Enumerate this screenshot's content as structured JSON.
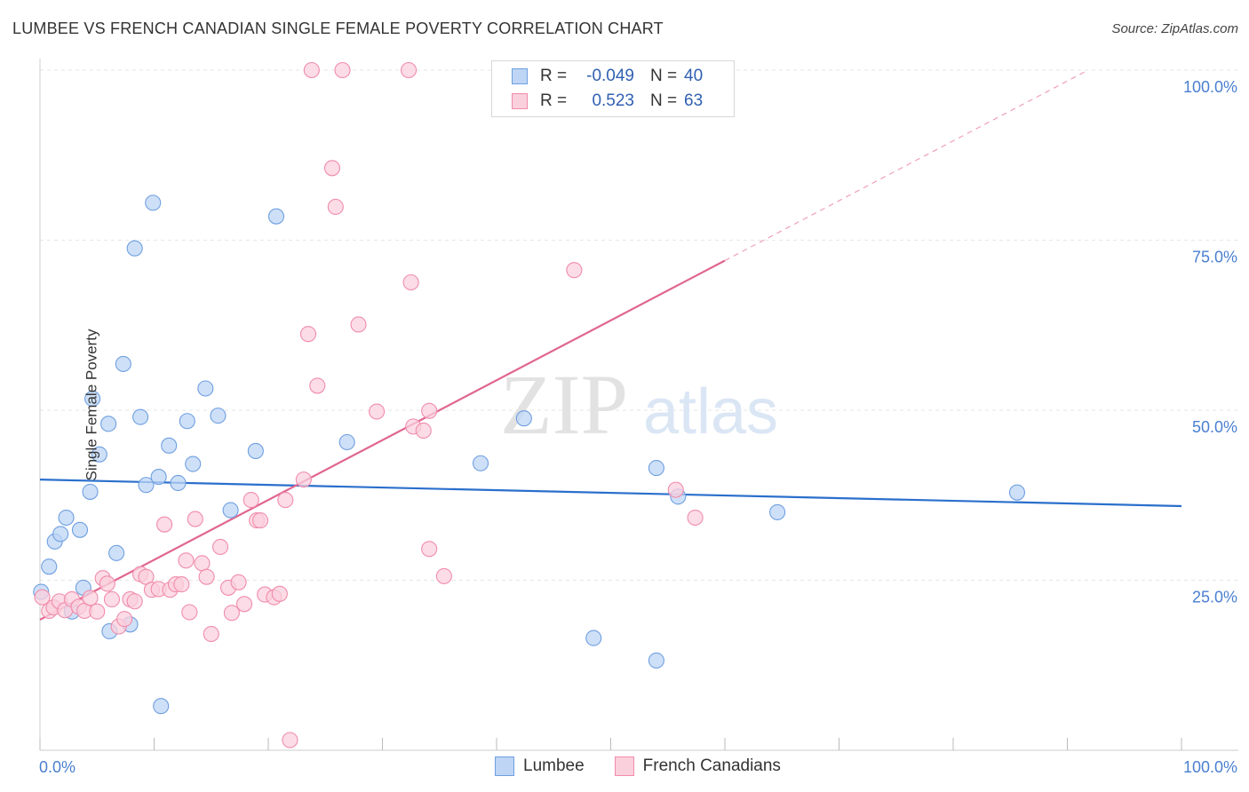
{
  "title": "LUMBEE VS FRENCH CANADIAN SINGLE FEMALE POVERTY CORRELATION CHART",
  "source": "Source: ZipAtlas.com",
  "watermark": {
    "zip": "ZIP",
    "atlas": "atlas"
  },
  "legend": {
    "rows": [
      {
        "r_label": "R =",
        "r_value": "-0.049",
        "n_label": "N =",
        "n_value": "40",
        "color": "#6f9fe0"
      },
      {
        "r_label": "R =",
        "r_value": "0.523",
        "n_label": "N =",
        "n_value": "63",
        "color": "#f08cab"
      }
    ]
  },
  "bottom_legend": [
    {
      "label": "Lumbee",
      "fill": "#bed5f5",
      "stroke": "#6f9fe0"
    },
    {
      "label": "French Canadians",
      "fill": "#fbd0dd",
      "stroke": "#f08cab"
    }
  ],
  "chart_data": {
    "type": "scatter",
    "title": "LUMBEE VS FRENCH CANADIAN SINGLE FEMALE POVERTY CORRELATION CHART",
    "xlabel": "",
    "ylabel": "Single Female Poverty",
    "xlim": [
      0,
      100
    ],
    "ylim": [
      0,
      100
    ],
    "x_tick_labels": [
      "0.0%",
      "100.0%"
    ],
    "y_tick_labels": [
      {
        "value": 100,
        "label": "100.0%"
      },
      {
        "value": 75,
        "label": "75.0%"
      },
      {
        "value": 50,
        "label": "50.0%"
      },
      {
        "value": 25,
        "label": "25.0%"
      }
    ],
    "series": [
      {
        "name": "Lumbee",
        "color": "#6f9fe0",
        "fill": "#bed5f5",
        "trend": {
          "x0": 0,
          "y0": 39.8,
          "x1": 100,
          "y1": 35.9
        },
        "points": [
          [
            0.1,
            23.3
          ],
          [
            0.8,
            27
          ],
          [
            1.3,
            30.7
          ],
          [
            1.8,
            31.8
          ],
          [
            2.3,
            34.2
          ],
          [
            2.8,
            20.4
          ],
          [
            3.5,
            32.4
          ],
          [
            3.8,
            23.9
          ],
          [
            4.4,
            38
          ],
          [
            4.6,
            51.7
          ],
          [
            5.2,
            43.5
          ],
          [
            6.0,
            48
          ],
          [
            6.1,
            17.5
          ],
          [
            6.7,
            29
          ],
          [
            7.3,
            56.8
          ],
          [
            7.9,
            18.5
          ],
          [
            8.3,
            73.8
          ],
          [
            8.8,
            49
          ],
          [
            9.3,
            39
          ],
          [
            9.9,
            80.5
          ],
          [
            10.4,
            40.2
          ],
          [
            10.6,
            6.5
          ],
          [
            11.3,
            44.8
          ],
          [
            12.1,
            39.3
          ],
          [
            12.9,
            48.4
          ],
          [
            13.4,
            42.1
          ],
          [
            14.5,
            53.2
          ],
          [
            15.6,
            49.2
          ],
          [
            16.7,
            35.3
          ],
          [
            18.9,
            44
          ],
          [
            20.7,
            78.5
          ],
          [
            26.9,
            45.3
          ],
          [
            38.6,
            42.2
          ],
          [
            42.4,
            48.8
          ],
          [
            48.5,
            16.5
          ],
          [
            54.0,
            41.5
          ],
          [
            55.9,
            37.3
          ],
          [
            54.0,
            13.2
          ],
          [
            64.6,
            35
          ],
          [
            85.6,
            37.9
          ]
        ]
      },
      {
        "name": "French Canadians",
        "color": "#f08cab",
        "fill": "#fbd0dd",
        "trend": {
          "x0": 0,
          "y0": 19.2,
          "x1": 60,
          "y1": 72.0
        },
        "trend_extension": {
          "x0": 60,
          "y0": 72.0,
          "x1": 100,
          "y1": 107.2
        },
        "points": [
          [
            0.2,
            22.5
          ],
          [
            0.8,
            20.5
          ],
          [
            1.2,
            21
          ],
          [
            1.7,
            21.9
          ],
          [
            2.2,
            20.6
          ],
          [
            2.8,
            22.2
          ],
          [
            3.4,
            21.1
          ],
          [
            3.9,
            20.5
          ],
          [
            4.4,
            22.4
          ],
          [
            5.0,
            20.4
          ],
          [
            5.5,
            25.3
          ],
          [
            5.9,
            24.5
          ],
          [
            6.3,
            22.2
          ],
          [
            6.9,
            18.2
          ],
          [
            7.4,
            19.3
          ],
          [
            7.9,
            22.2
          ],
          [
            8.3,
            21.9
          ],
          [
            8.8,
            25.9
          ],
          [
            9.3,
            25.5
          ],
          [
            9.8,
            23.6
          ],
          [
            10.4,
            23.7
          ],
          [
            10.9,
            33.2
          ],
          [
            11.4,
            23.6
          ],
          [
            11.9,
            24.4
          ],
          [
            12.4,
            24.4
          ],
          [
            12.8,
            27.9
          ],
          [
            13.1,
            20.3
          ],
          [
            13.6,
            34
          ],
          [
            14.2,
            27.5
          ],
          [
            14.6,
            25.5
          ],
          [
            15.0,
            17.1
          ],
          [
            15.8,
            29.9
          ],
          [
            16.5,
            23.9
          ],
          [
            16.8,
            20.2
          ],
          [
            17.4,
            24.7
          ],
          [
            17.9,
            21.5
          ],
          [
            18.5,
            36.8
          ],
          [
            19.0,
            33.8
          ],
          [
            19.3,
            33.8
          ],
          [
            19.7,
            22.9
          ],
          [
            20.5,
            22.5
          ],
          [
            21.0,
            23
          ],
          [
            21.5,
            36.8
          ],
          [
            21.9,
            1.5
          ],
          [
            23.1,
            39.8
          ],
          [
            23.5,
            61.2
          ],
          [
            23.8,
            100
          ],
          [
            24.3,
            53.6
          ],
          [
            25.6,
            85.6
          ],
          [
            25.9,
            79.9
          ],
          [
            26.5,
            100
          ],
          [
            27.9,
            62.6
          ],
          [
            29.5,
            49.8
          ],
          [
            32.3,
            100
          ],
          [
            32.5,
            68.8
          ],
          [
            32.7,
            47.6
          ],
          [
            33.6,
            47
          ],
          [
            34.1,
            49.9
          ],
          [
            34.1,
            29.6
          ],
          [
            35.4,
            25.6
          ],
          [
            46.8,
            70.6
          ],
          [
            55.7,
            38.3
          ],
          [
            57.4,
            34.2
          ]
        ]
      }
    ]
  }
}
